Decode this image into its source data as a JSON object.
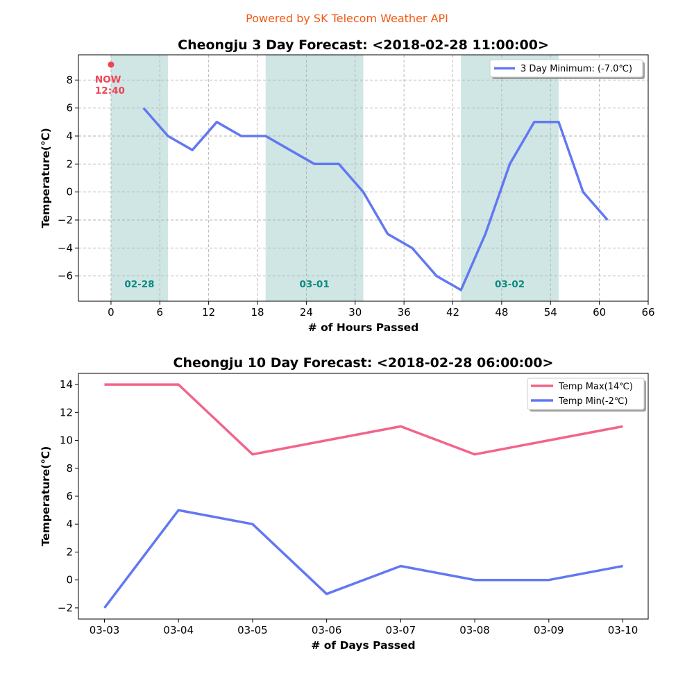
{
  "header": {
    "credit": "Powered by SK Telecom Weather API"
  },
  "colors": {
    "credit": "#f05a14",
    "min_line": "#6278f2",
    "max_line": "#f2648a",
    "day_band": "#cfe6e4",
    "day_label": "#0a8a82",
    "now_marker": "#ee4455",
    "grid": "#b0b0b0"
  },
  "chart_data": [
    {
      "type": "line",
      "title": "Cheongju 3 Day Forecast: <2018-02-28 11:00:00>",
      "xlabel": "# of Hours Passed",
      "ylabel": "Temperature(℃)",
      "xlim": [
        -4,
        66
      ],
      "ylim": [
        -7.8,
        9.8
      ],
      "xticks": [
        0,
        6,
        12,
        18,
        24,
        30,
        36,
        42,
        48,
        54,
        60,
        66
      ],
      "yticks": [
        -6,
        -4,
        -2,
        0,
        2,
        4,
        6,
        8
      ],
      "grid": true,
      "legend_position": "top-right",
      "series": [
        {
          "name": "3 Day Minimum: (-7.0℃)",
          "x": [
            4,
            7,
            10,
            13,
            16,
            19,
            22,
            25,
            28,
            31,
            34,
            37,
            40,
            43,
            46,
            49,
            52,
            55,
            58,
            61
          ],
          "y": [
            6,
            4,
            3,
            5,
            4,
            4,
            3,
            2,
            2,
            0,
            -3,
            -4,
            -6,
            -7,
            -3,
            2,
            5,
            5,
            0,
            -2
          ]
        }
      ],
      "day_bands": [
        {
          "label": "02-28",
          "x_start": 0,
          "x_end": 7
        },
        {
          "label": "03-01",
          "x_start": 19,
          "x_end": 31
        },
        {
          "label": "03-02",
          "x_start": 43,
          "x_end": 55
        }
      ],
      "now_marker": {
        "x": 0,
        "y": 9.1,
        "label_line1": "NOW",
        "label_line2": "12:40"
      }
    },
    {
      "type": "line",
      "title": "Cheongju 10 Day Forecast: <2018-02-28 06:00:00>",
      "xlabel": "# of Days Passed",
      "ylabel": "Temperature(℃)",
      "categories": [
        "03-03",
        "03-04",
        "03-05",
        "03-06",
        "03-07",
        "03-08",
        "03-09",
        "03-10"
      ],
      "ylim": [
        -2.8,
        14.8
      ],
      "yticks": [
        -2,
        0,
        2,
        4,
        6,
        8,
        10,
        12,
        14
      ],
      "grid": false,
      "legend_position": "top-right",
      "series": [
        {
          "name": "Temp Max(14℃)",
          "values": [
            14,
            14,
            9,
            10,
            11,
            9,
            10,
            11
          ]
        },
        {
          "name": "Temp Min(-2℃)",
          "values": [
            -2,
            5,
            4,
            -1,
            1,
            0,
            0,
            1
          ]
        }
      ]
    }
  ]
}
